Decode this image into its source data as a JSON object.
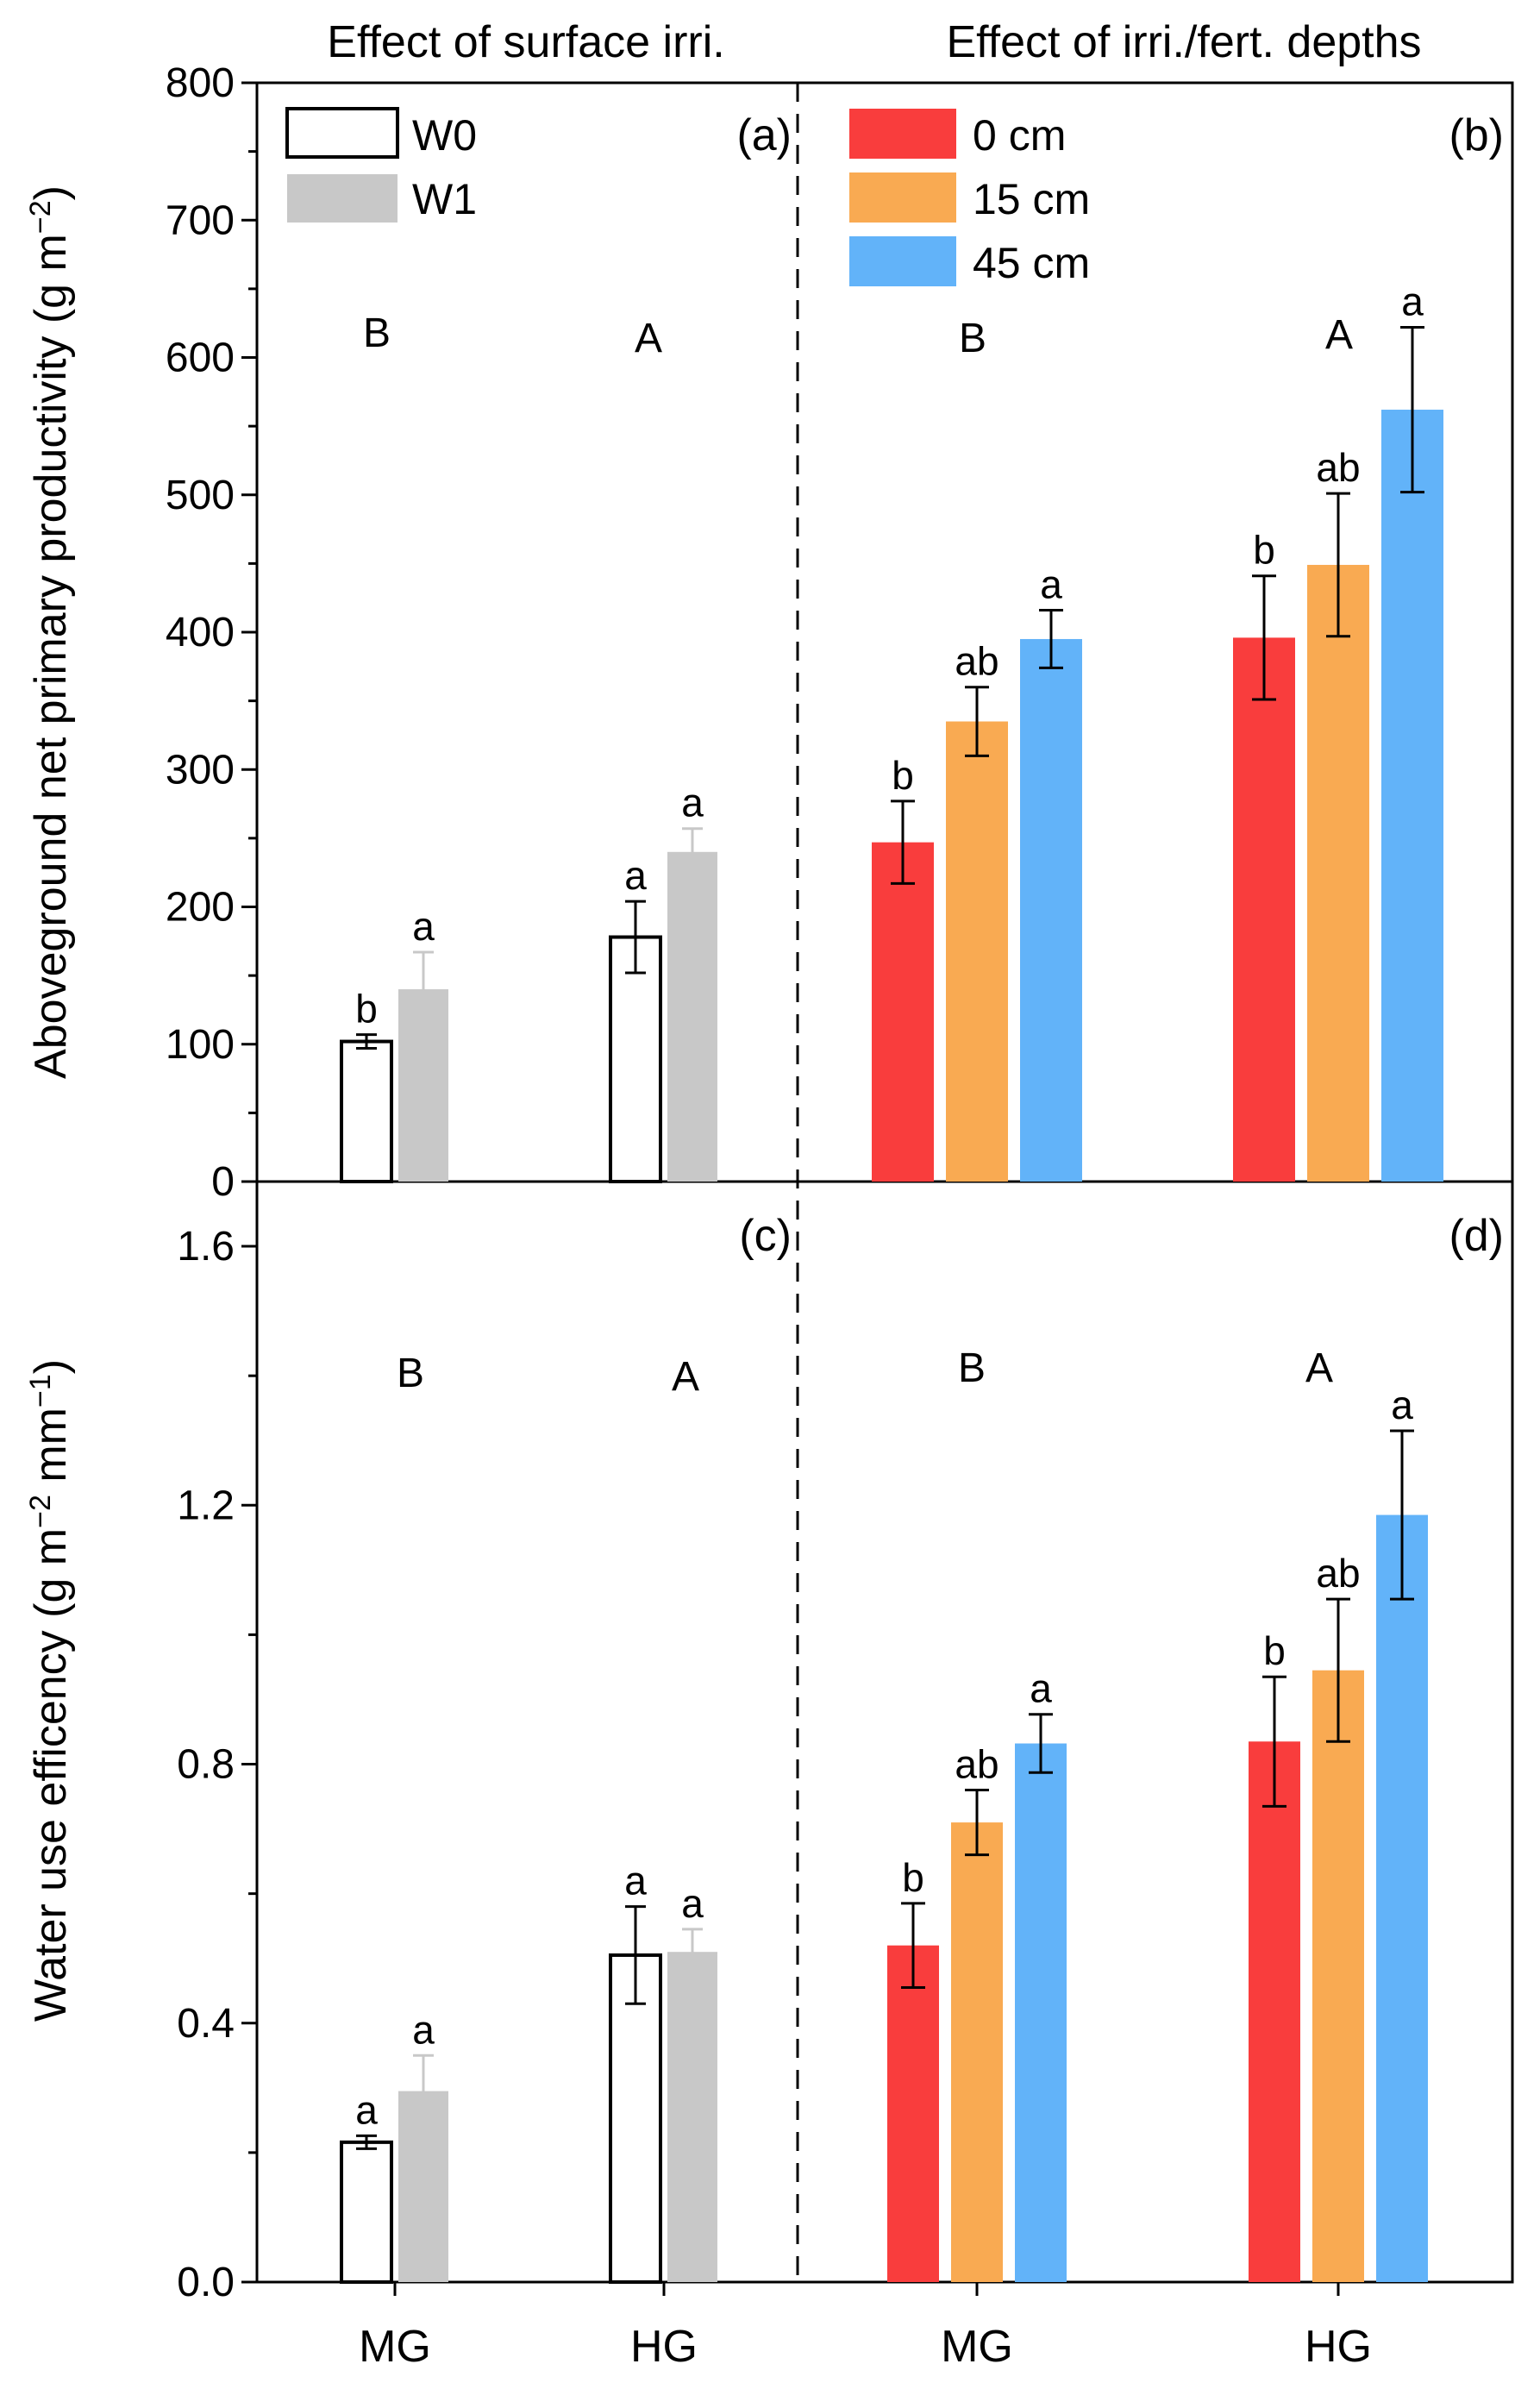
{
  "titles": {
    "left": "Effect of surface irri.",
    "right": "Effect of  irri./fert. depths"
  },
  "legend_left": [
    {
      "label": "W0",
      "fill": "#ffffff",
      "stroke": "#000000"
    },
    {
      "label": "W1",
      "fill": "#c8c8c8",
      "stroke": "#c8c8c8"
    }
  ],
  "legend_right": [
    {
      "label": "0 cm",
      "fill": "#f93d3d"
    },
    {
      "label": "15 cm",
      "fill": "#f9aa52"
    },
    {
      "label": "45 cm",
      "fill": "#62b3f9"
    }
  ],
  "chart_data": [
    {
      "type": "bar",
      "panel": "top",
      "ylabel_main": "Aboveground net primary productivity (g m",
      "ylabel_sup": "−2",
      "ylabel_end": ")",
      "ylim": [
        0,
        800
      ],
      "yticks": [
        0,
        100,
        200,
        300,
        400,
        500,
        600,
        700,
        800
      ],
      "ytick_labels": [
        "0",
        "100",
        "200",
        "300",
        "400",
        "500",
        "600",
        "700",
        "800"
      ],
      "subplots": [
        {
          "label": "(a)",
          "categories": [
            "MG",
            "HG"
          ],
          "group_letters": [
            "B",
            "A"
          ],
          "series": [
            {
              "name": "W0",
              "values": [
                102,
                178
              ],
              "errors": [
                5,
                26
              ],
              "sig": [
                "b",
                "a"
              ]
            },
            {
              "name": "W1",
              "values": [
                140,
                240
              ],
              "errors": [
                27,
                17
              ],
              "sig": [
                "a",
                "a"
              ]
            }
          ]
        },
        {
          "label": "(b)",
          "categories": [
            "MG",
            "HG"
          ],
          "group_letters": [
            "B",
            "A"
          ],
          "series": [
            {
              "name": "0 cm",
              "values": [
                247,
                396
              ],
              "errors": [
                30,
                45
              ],
              "sig": [
                "b",
                "b"
              ]
            },
            {
              "name": "15 cm",
              "values": [
                335,
                449
              ],
              "errors": [
                25,
                52
              ],
              "sig": [
                "ab",
                "ab"
              ]
            },
            {
              "name": "45 cm",
              "values": [
                395,
                562
              ],
              "errors": [
                21,
                60
              ],
              "sig": [
                "a",
                "a"
              ]
            }
          ]
        }
      ]
    },
    {
      "type": "bar",
      "panel": "bottom",
      "ylabel_main": "Water use efficency (g m",
      "ylabel_sup": "−2",
      "ylabel_mid": " mm",
      "ylabel_sup2": "−1",
      "ylabel_end": ")",
      "ylim": [
        0,
        1.7
      ],
      "yticks": [
        0,
        0.4,
        0.8,
        1.2,
        1.6
      ],
      "ytick_labels": [
        "0.0",
        "0.4",
        "0.8",
        "1.2",
        "1.6"
      ],
      "subplots": [
        {
          "label": "(c)",
          "categories": [
            "MG",
            "HG"
          ],
          "group_letters": [
            "B",
            "A"
          ],
          "series": [
            {
              "name": "W0",
              "values": [
                0.216,
                0.505
              ],
              "errors": [
                0.01,
                0.075
              ],
              "sig": [
                "a",
                "a"
              ]
            },
            {
              "name": "W1",
              "values": [
                0.295,
                0.51
              ],
              "errors": [
                0.055,
                0.035
              ],
              "sig": [
                "a",
                "a"
              ]
            }
          ]
        },
        {
          "label": "(d)",
          "categories": [
            "MG",
            "HG"
          ],
          "group_letters": [
            "B",
            "A"
          ],
          "series": [
            {
              "name": "0 cm",
              "values": [
                0.52,
                0.835
              ],
              "errors": [
                0.065,
                0.1
              ],
              "sig": [
                "b",
                "b"
              ]
            },
            {
              "name": "15 cm",
              "values": [
                0.71,
                0.945
              ],
              "errors": [
                0.05,
                0.11
              ],
              "sig": [
                "ab",
                "ab"
              ]
            },
            {
              "name": "45 cm",
              "values": [
                0.832,
                1.185
              ],
              "errors": [
                0.045,
                0.13
              ],
              "sig": [
                "a",
                "a"
              ]
            }
          ]
        }
      ],
      "xtick_labels": [
        "MG",
        "HG",
        "MG",
        "HG"
      ]
    }
  ]
}
